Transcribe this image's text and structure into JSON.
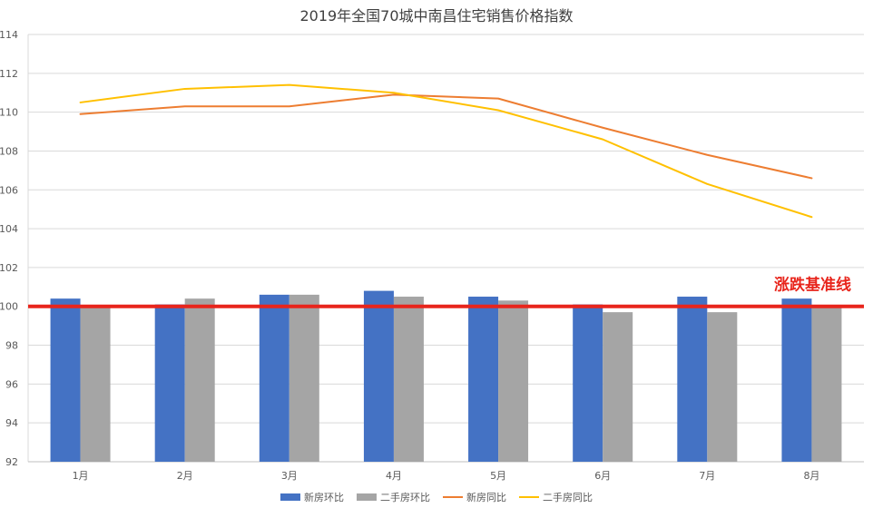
{
  "chart_data": {
    "type": "bar",
    "title": "2019年全国70城中南昌住宅销售价格指数",
    "categories": [
      "1月",
      "2月",
      "3月",
      "4月",
      "5月",
      "6月",
      "7月",
      "8月"
    ],
    "ylim": [
      92,
      114
    ],
    "yticks": [
      92,
      94,
      96,
      98,
      100,
      102,
      104,
      106,
      108,
      110,
      112,
      114
    ],
    "grid": true,
    "legend_position": "bottom",
    "series": [
      {
        "name": "新房环比",
        "kind": "bar",
        "color": "#4472c4",
        "values": [
          100.4,
          100.1,
          100.6,
          100.8,
          100.5,
          100.1,
          100.5,
          100.4
        ]
      },
      {
        "name": "二手房环比",
        "kind": "bar",
        "color": "#a5a5a5",
        "values": [
          100.0,
          100.4,
          100.6,
          100.5,
          100.3,
          99.7,
          99.7,
          100.0
        ]
      },
      {
        "name": "新房同比",
        "kind": "line",
        "color": "#ed7d31",
        "values": [
          109.9,
          110.3,
          110.3,
          110.9,
          110.7,
          109.2,
          107.8,
          106.6
        ]
      },
      {
        "name": "二手房同比",
        "kind": "line",
        "color": "#ffc000",
        "values": [
          110.5,
          111.2,
          111.4,
          111.0,
          110.1,
          108.6,
          106.3,
          104.6
        ]
      }
    ],
    "annotations": [
      {
        "text": "涨跌基准线",
        "y": 100,
        "color": "#e8251c"
      }
    ]
  }
}
